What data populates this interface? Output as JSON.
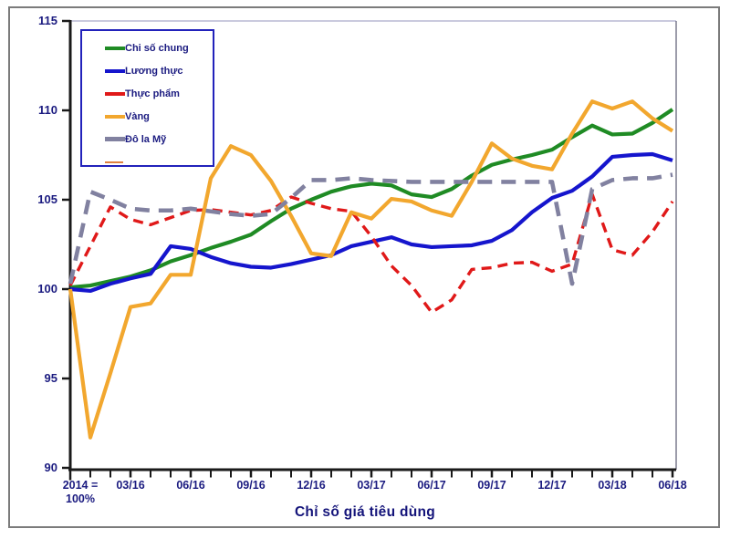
{
  "figure": {
    "title": "Chỉ số giá tiêu dùng",
    "corner_label_line1": "2014 =",
    "corner_label_line2": "100%"
  },
  "chart_data": {
    "type": "line",
    "title": "Chỉ số giá tiêu dùng",
    "x_base_note": "2014 = 100%",
    "grid": false,
    "legend_position": "top-left",
    "ylim": [
      90,
      115
    ],
    "y_ticks": [
      115,
      110,
      105,
      100,
      95,
      90
    ],
    "x_points_monthly": 31,
    "x_major_labels": [
      "03/16",
      "06/16",
      "09/16",
      "12/16",
      "03/17",
      "06/17",
      "09/17",
      "12/17",
      "03/18",
      "06/18"
    ],
    "x_major_tick_positions": [
      3,
      6,
      9,
      12,
      15,
      18,
      21,
      24,
      27,
      30
    ],
    "series": [
      {
        "name": "Chi số chung",
        "color": "#1f8b24",
        "style": "solid",
        "values": [
          100.1,
          100.2,
          100.45,
          100.7,
          101.05,
          101.55,
          101.9,
          102.3,
          102.65,
          103.05,
          103.8,
          104.5,
          105.0,
          105.45,
          105.75,
          105.9,
          105.8,
          105.3,
          105.15,
          105.6,
          106.35,
          106.95,
          107.25,
          107.5,
          107.8,
          108.5,
          109.15,
          108.65,
          108.7,
          109.3,
          110.05
        ]
      },
      {
        "name": "Lương thực",
        "color": "#1515cd",
        "style": "solid",
        "values": [
          100.0,
          99.9,
          100.3,
          100.6,
          100.85,
          102.4,
          102.25,
          101.8,
          101.45,
          101.25,
          101.2,
          101.4,
          101.65,
          101.9,
          102.4,
          102.65,
          102.9,
          102.5,
          102.35,
          102.4,
          102.45,
          102.7,
          103.3,
          104.3,
          105.1,
          105.5,
          106.3,
          107.4,
          107.5,
          107.55,
          107.2
        ]
      },
      {
        "name": "Thực phẩm",
        "color": "#e01919",
        "style": "dashed",
        "values": [
          100.2,
          102.4,
          104.6,
          103.9,
          103.6,
          104.0,
          104.4,
          104.45,
          104.3,
          104.15,
          104.4,
          105.15,
          104.8,
          104.5,
          104.35,
          102.95,
          101.3,
          100.2,
          98.7,
          99.4,
          101.1,
          101.2,
          101.45,
          101.5,
          101.0,
          101.4,
          105.3,
          102.2,
          101.9,
          103.2,
          104.9
        ]
      },
      {
        "name": "Vàng",
        "color": "#f2a72e",
        "style": "solid",
        "values": [
          100.0,
          91.7,
          95.3,
          99.0,
          99.2,
          100.8,
          100.8,
          106.2,
          108.0,
          107.5,
          106.05,
          104.1,
          102.0,
          101.85,
          104.3,
          103.95,
          105.05,
          104.9,
          104.4,
          104.1,
          106.0,
          108.15,
          107.3,
          106.9,
          106.7,
          108.7,
          110.5,
          110.1,
          110.5,
          109.55,
          108.85
        ]
      },
      {
        "name": "Đô la Mỹ",
        "color": "#8181a0",
        "style": "dashed",
        "values": [
          100.3,
          105.45,
          105.0,
          104.5,
          104.4,
          104.4,
          104.5,
          104.35,
          104.2,
          104.1,
          104.2,
          105.1,
          106.1,
          106.1,
          106.2,
          106.1,
          106.05,
          106.0,
          106.0,
          106.0,
          106.0,
          106.0,
          106.0,
          106.0,
          106.0,
          100.3,
          105.6,
          106.1,
          106.2,
          106.2,
          106.4
        ]
      },
      {
        "name": "",
        "color": "#e0813f",
        "style": "solid-thin",
        "values": []
      }
    ]
  },
  "colors": {
    "axis_line": "#1a1a1a",
    "axis_text": "#1b1b80",
    "title_text": "#14147a",
    "legend_border": "#2222bb",
    "plot_top_border": "#b8b8d4",
    "plot_right_border": "#5a5a72",
    "outer_border": "#7b7b7b"
  }
}
